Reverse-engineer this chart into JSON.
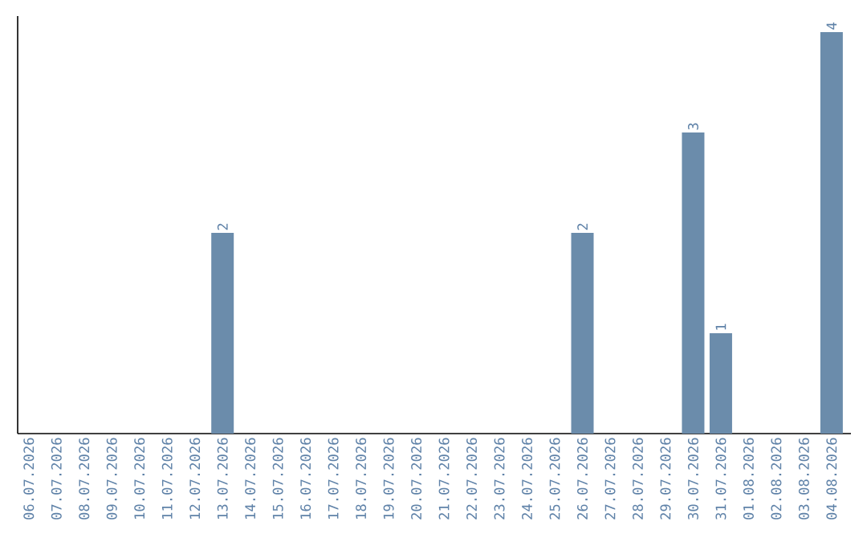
{
  "chart_data": {
    "type": "bar",
    "categories": [
      "06.07.2026",
      "07.07.2026",
      "08.07.2026",
      "09.07.2026",
      "10.07.2026",
      "11.07.2026",
      "12.07.2026",
      "13.07.2026",
      "14.07.2026",
      "15.07.2026",
      "16.07.2026",
      "17.07.2026",
      "18.07.2026",
      "19.07.2026",
      "20.07.2026",
      "21.07.2026",
      "22.07.2026",
      "23.07.2026",
      "24.07.2026",
      "25.07.2026",
      "26.07.2026",
      "27.07.2026",
      "28.07.2026",
      "29.07.2026",
      "30.07.2026",
      "31.07.2026",
      "01.08.2026",
      "02.08.2026",
      "03.08.2026",
      "04.08.2026"
    ],
    "values": [
      0,
      0,
      0,
      0,
      0,
      0,
      0,
      2,
      0,
      0,
      0,
      0,
      0,
      0,
      0,
      0,
      0,
      0,
      0,
      0,
      2,
      0,
      0,
      0,
      3,
      1,
      0,
      0,
      0,
      4
    ],
    "value_labels": [
      null,
      null,
      null,
      null,
      null,
      null,
      null,
      "2",
      null,
      null,
      null,
      null,
      null,
      null,
      null,
      null,
      null,
      null,
      null,
      null,
      "2",
      null,
      null,
      null,
      "3",
      "1",
      null,
      null,
      null,
      "4"
    ],
    "color": "#6b8cab",
    "ylim": [
      0,
      4
    ],
    "tick_labels": "x",
    "grid": false
  }
}
